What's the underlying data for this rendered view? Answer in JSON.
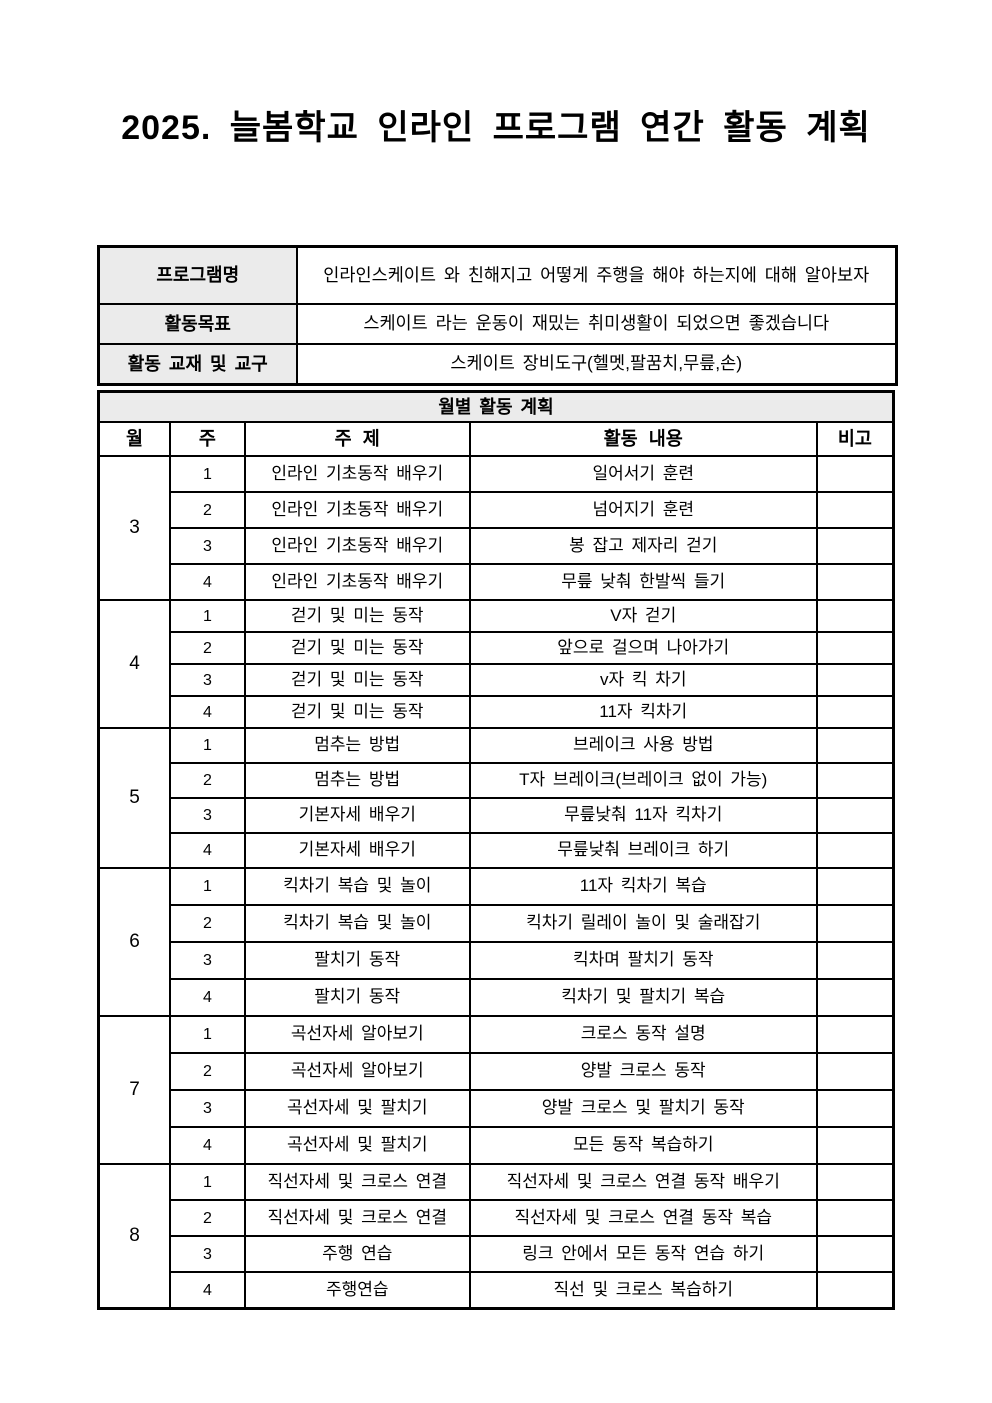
{
  "page": {
    "title": "2025. 늘봄학교 인라인 프로그램 연간 활동 계획"
  },
  "colors": {
    "cell_shade": "#ebebeb",
    "border": "#000000",
    "text": "#000000"
  },
  "info_table": {
    "rows": [
      {
        "label": "프로그램명",
        "value": "인라인스케이트 와 친해지고 어떻게 주행을 해야 하는지에 대해 알아보자"
      },
      {
        "label": "활동목표",
        "value": "스케이트 라는 운동이 재밌는 취미생활이 되었으면 좋겠습니다"
      },
      {
        "label": "활동 교재 및 교구",
        "value": "스케이트 장비도구(헬멧,팔꿈치,무릎,손)"
      }
    ]
  },
  "monthly_plan": {
    "section_title": "월별 활동 계획",
    "columns": [
      "월",
      "주",
      "주 제",
      "활동 내용",
      "비고"
    ],
    "groups": [
      {
        "month": "3",
        "rows": [
          {
            "week": "1",
            "topic": "인라인 기초동작 배우기",
            "activity": "일어서기 훈련",
            "note": ""
          },
          {
            "week": "2",
            "topic": "인라인 기초동작 배우기",
            "activity": "넘어지기 훈련",
            "note": ""
          },
          {
            "week": "3",
            "topic": "인라인 기초동작 배우기",
            "activity": "봉 잡고 제자리 걷기",
            "note": ""
          },
          {
            "week": "4",
            "topic": "인라인 기초동작 배우기",
            "activity": "무릎 낮춰 한발씩 들기",
            "note": ""
          }
        ]
      },
      {
        "month": "4",
        "rows": [
          {
            "week": "1",
            "topic": "걷기 및 미는 동작",
            "activity": "V자 걷기",
            "note": ""
          },
          {
            "week": "2",
            "topic": "걷기 및 미는 동작",
            "activity": "앞으로 걸으며 나아가기",
            "note": ""
          },
          {
            "week": "3",
            "topic": "걷기 및 미는 동작",
            "activity": "v자 킥 차기",
            "note": ""
          },
          {
            "week": "4",
            "topic": "걷기 및 미는 동작",
            "activity": "11자 킥차기",
            "note": ""
          }
        ]
      },
      {
        "month": "5",
        "rows": [
          {
            "week": "1",
            "topic": "멈추는 방법",
            "activity": "브레이크 사용 방법",
            "note": ""
          },
          {
            "week": "2",
            "topic": "멈추는 방법",
            "activity": "T자 브레이크(브레이크 없이 가능)",
            "note": ""
          },
          {
            "week": "3",
            "topic": "기본자세 배우기",
            "activity": "무릎낮춰 11자 킥차기",
            "note": ""
          },
          {
            "week": "4",
            "topic": "기본자세 배우기",
            "activity": "무릎낮춰 브레이크 하기",
            "note": ""
          }
        ]
      },
      {
        "month": "6",
        "rows": [
          {
            "week": "1",
            "topic": "킥차기 복습 및 놀이",
            "activity": "11자 킥차기 복습",
            "note": ""
          },
          {
            "week": "2",
            "topic": "킥차기 복습 및 놀이",
            "activity": "킥차기 릴레이 놀이 및 술래잡기",
            "note": ""
          },
          {
            "week": "3",
            "topic": "팔치기 동작",
            "activity": "킥차며 팔치기 동작",
            "note": ""
          },
          {
            "week": "4",
            "topic": "팔치기 동작",
            "activity": "킥차기 및 팔치기 복습",
            "note": ""
          }
        ]
      },
      {
        "month": "7",
        "rows": [
          {
            "week": "1",
            "topic": "곡선자세 알아보기",
            "activity": "크로스 동작 설명",
            "note": ""
          },
          {
            "week": "2",
            "topic": "곡선자세 알아보기",
            "activity": "양발 크로스 동작",
            "note": ""
          },
          {
            "week": "3",
            "topic": "곡선자세 및 팔치기",
            "activity": "양발 크로스 및 팔치기 동작",
            "note": ""
          },
          {
            "week": "4",
            "topic": "곡선자세 및 팔치기",
            "activity": "모든 동작 복습하기",
            "note": ""
          }
        ]
      },
      {
        "month": "8",
        "rows": [
          {
            "week": "1",
            "topic": "직선자세 및 크로스 연결",
            "activity": "직선자세 및 크로스 연결 동작 배우기",
            "note": ""
          },
          {
            "week": "2",
            "topic": "직선자세 및 크로스 연결",
            "activity": "직선자세 및 크로스 연결 동작 복습",
            "note": ""
          },
          {
            "week": "3",
            "topic": "주행 연습",
            "activity": "링크 안에서 모든 동작 연습 하기",
            "note": ""
          },
          {
            "week": "4",
            "topic": "주행연습",
            "activity": "직선 및 크로스 복습하기",
            "note": ""
          }
        ]
      }
    ]
  }
}
